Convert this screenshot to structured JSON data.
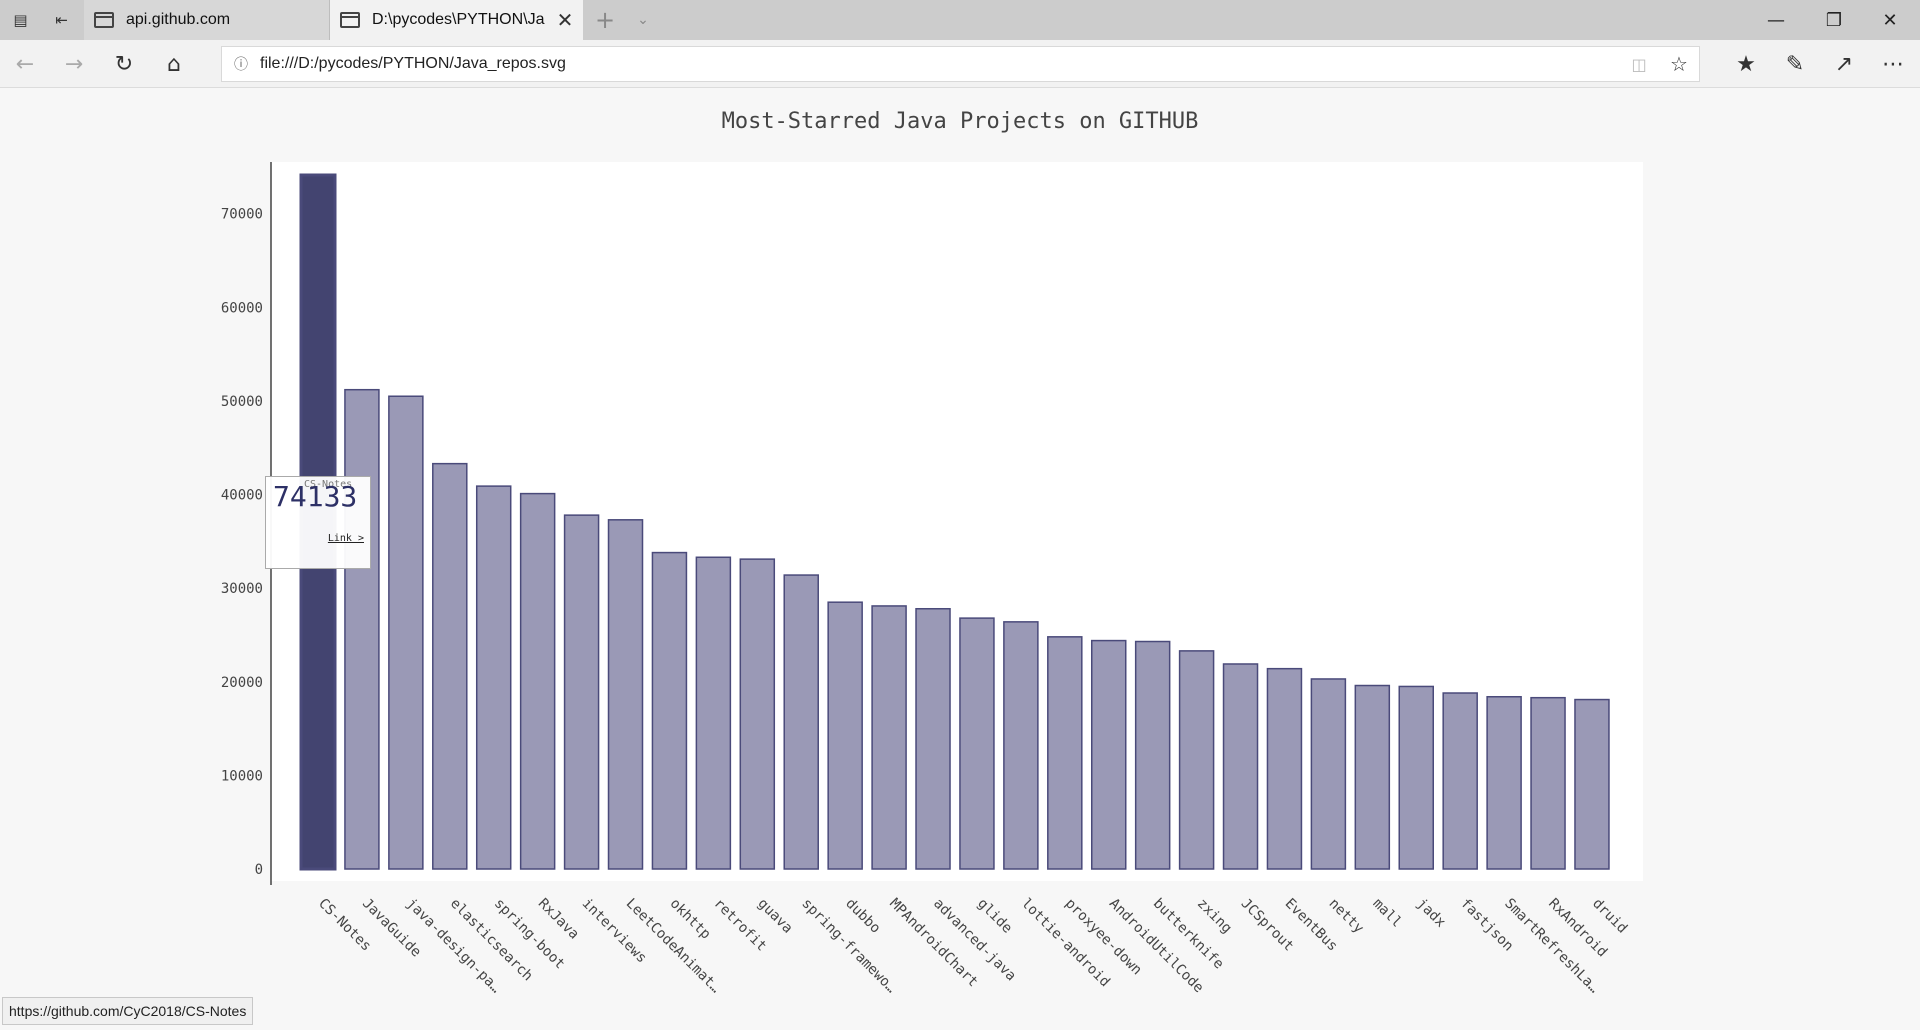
{
  "tabs": [
    {
      "title": "api.github.com"
    },
    {
      "title": "D:\\pycodes\\PYTHON\\Ja"
    }
  ],
  "address": {
    "url": "file:///D:/pycodes/PYTHON/Java_repos.svg"
  },
  "tooltip": {
    "name": "CS-Notes",
    "value": "74133",
    "link": "Link >"
  },
  "status": {
    "url": "https://github.com/CyC2018/CS-Notes"
  },
  "colors": {
    "bar": "#9a99b6",
    "bar_border": "#4a4a7a",
    "bar_highlight": "#434470"
  },
  "chart_data": {
    "type": "bar",
    "title": "Most-Starred Java Projects on GITHUB",
    "xlabel": "",
    "ylabel": "",
    "ylim": [
      0,
      74133
    ],
    "yticks": [
      "0",
      "10000",
      "20000",
      "30000",
      "40000",
      "50000",
      "60000",
      "70000"
    ],
    "highlighted_category": "CS-Notes",
    "categories": [
      "CS-Notes",
      "JavaGuide",
      "java-design-pa…",
      "elasticsearch",
      "spring-boot",
      "RxJava",
      "interviews",
      "LeetCodeAnimat…",
      "okhttp",
      "retrofit",
      "guava",
      "spring-framewo…",
      "dubbo",
      "MPAndroidChart",
      "advanced-java",
      "glide",
      "lottie-android",
      "proxyee-down",
      "AndroidUtilCode",
      "butterknife",
      "zxing",
      "JCSprout",
      "EventBus",
      "netty",
      "mall",
      "jadx",
      "fastjson",
      "SmartRefreshLa…",
      "RxAndroid",
      "druid"
    ],
    "values": [
      74133,
      51200,
      50500,
      43300,
      40900,
      40100,
      37800,
      37300,
      33800,
      33300,
      33100,
      31400,
      28500,
      28100,
      27800,
      26800,
      26400,
      24800,
      24400,
      24300,
      23300,
      21900,
      21400,
      20300,
      19600,
      19500,
      18800,
      18400,
      18300,
      18100
    ]
  }
}
